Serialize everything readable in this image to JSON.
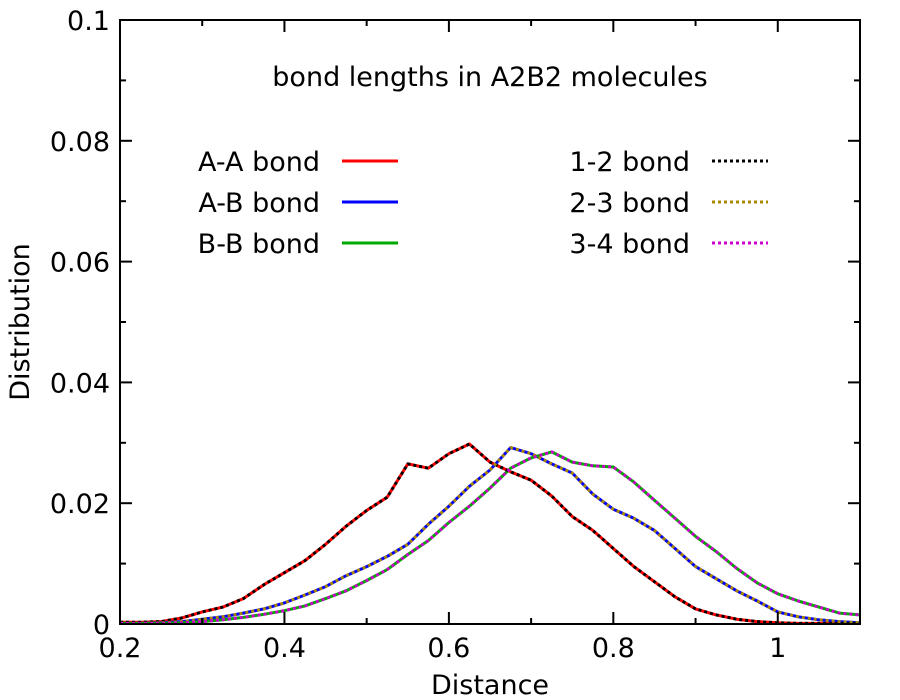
{
  "chart_data": {
    "type": "line",
    "title": "bond lengths in A2B2 molecules",
    "xlabel": "Distance",
    "ylabel": "Distribution",
    "xlim": [
      0.2,
      1.1
    ],
    "ylim": [
      0,
      0.1
    ],
    "xticks": [
      0.2,
      0.4,
      0.6,
      0.8,
      1
    ],
    "xtick_labels": [
      "0.2",
      "0.4",
      "0.6",
      "0.8",
      "1"
    ],
    "yticks": [
      0,
      0.02,
      0.04,
      0.06,
      0.08,
      0.1
    ],
    "ytick_labels": [
      "0",
      "0.02",
      "0.04",
      "0.06",
      "0.08",
      "0.1"
    ],
    "grid": false,
    "legend_placement": "top",
    "series": [
      {
        "name": "A-A bond",
        "color": "#ff0000",
        "style": "solid",
        "x": [
          0.2,
          0.225,
          0.25,
          0.275,
          0.3,
          0.325,
          0.35,
          0.375,
          0.4,
          0.425,
          0.45,
          0.475,
          0.5,
          0.525,
          0.55,
          0.575,
          0.6,
          0.625,
          0.65,
          0.675,
          0.7,
          0.725,
          0.75,
          0.775,
          0.8,
          0.825,
          0.85,
          0.875,
          0.9,
          0.925,
          0.95,
          0.975,
          1.0,
          1.025,
          1.05,
          1.075,
          1.1
        ],
        "y": [
          0.0003,
          0.0003,
          0.0004,
          0.001,
          0.002,
          0.0028,
          0.0042,
          0.0065,
          0.0085,
          0.0105,
          0.0132,
          0.0162,
          0.0188,
          0.021,
          0.0265,
          0.0258,
          0.0282,
          0.0298,
          0.0268,
          0.0252,
          0.0238,
          0.0212,
          0.0178,
          0.0155,
          0.0125,
          0.0095,
          0.007,
          0.0045,
          0.0025,
          0.0015,
          0.0008,
          0.0004,
          0.0002,
          0.0001,
          0.0001,
          0.0001,
          0.0001
        ]
      },
      {
        "name": "A-B bond",
        "color": "#0000ff",
        "style": "solid",
        "x": [
          0.2,
          0.225,
          0.25,
          0.275,
          0.3,
          0.325,
          0.35,
          0.375,
          0.4,
          0.425,
          0.45,
          0.475,
          0.5,
          0.525,
          0.55,
          0.575,
          0.6,
          0.625,
          0.65,
          0.675,
          0.7,
          0.725,
          0.75,
          0.775,
          0.8,
          0.825,
          0.85,
          0.875,
          0.9,
          0.925,
          0.95,
          0.975,
          1.0,
          1.025,
          1.05,
          1.075,
          1.1
        ],
        "y": [
          0.0001,
          0.0001,
          0.0002,
          0.0004,
          0.0008,
          0.0012,
          0.0018,
          0.0025,
          0.0035,
          0.0048,
          0.0062,
          0.008,
          0.0095,
          0.0112,
          0.0132,
          0.0165,
          0.0195,
          0.0228,
          0.0255,
          0.0292,
          0.0282,
          0.0265,
          0.025,
          0.0215,
          0.019,
          0.0175,
          0.0155,
          0.0125,
          0.0095,
          0.0075,
          0.0055,
          0.0038,
          0.002,
          0.0012,
          0.0007,
          0.0004,
          0.0002
        ]
      },
      {
        "name": "B-B bond",
        "color": "#00aa00",
        "style": "solid",
        "x": [
          0.2,
          0.225,
          0.25,
          0.275,
          0.3,
          0.325,
          0.35,
          0.375,
          0.4,
          0.425,
          0.45,
          0.475,
          0.5,
          0.525,
          0.55,
          0.575,
          0.6,
          0.625,
          0.65,
          0.675,
          0.7,
          0.725,
          0.75,
          0.775,
          0.8,
          0.825,
          0.85,
          0.875,
          0.9,
          0.925,
          0.95,
          0.975,
          1.0,
          1.025,
          1.05,
          1.075,
          1.1
        ],
        "y": [
          0.0001,
          0.0001,
          0.0001,
          0.0002,
          0.0004,
          0.0007,
          0.0011,
          0.0016,
          0.0022,
          0.003,
          0.0042,
          0.0055,
          0.0072,
          0.009,
          0.0115,
          0.0138,
          0.0168,
          0.0195,
          0.0225,
          0.0258,
          0.0275,
          0.0285,
          0.0268,
          0.0262,
          0.026,
          0.0235,
          0.0205,
          0.0175,
          0.0145,
          0.012,
          0.0092,
          0.0068,
          0.005,
          0.0038,
          0.0028,
          0.0018,
          0.0015
        ]
      },
      {
        "name": "1-2 bond",
        "color": "#000000",
        "style": "dotted",
        "x": [
          0.2,
          0.225,
          0.25,
          0.275,
          0.3,
          0.325,
          0.35,
          0.375,
          0.4,
          0.425,
          0.45,
          0.475,
          0.5,
          0.525,
          0.55,
          0.575,
          0.6,
          0.625,
          0.65,
          0.675,
          0.7,
          0.725,
          0.75,
          0.775,
          0.8,
          0.825,
          0.85,
          0.875,
          0.9,
          0.925,
          0.95,
          0.975,
          1.0,
          1.025,
          1.05,
          1.075,
          1.1
        ],
        "y": [
          0.0003,
          0.0003,
          0.0004,
          0.001,
          0.002,
          0.0028,
          0.0042,
          0.0065,
          0.0085,
          0.0105,
          0.0132,
          0.0162,
          0.0188,
          0.021,
          0.0265,
          0.0258,
          0.0282,
          0.0298,
          0.0268,
          0.0252,
          0.0238,
          0.0212,
          0.0178,
          0.0155,
          0.0125,
          0.0095,
          0.007,
          0.0045,
          0.0025,
          0.0015,
          0.0008,
          0.0004,
          0.0002,
          0.0001,
          0.0001,
          0.0001,
          0.0001
        ]
      },
      {
        "name": "2-3 bond",
        "color": "#aa8800",
        "style": "dotted",
        "x": [
          0.2,
          0.225,
          0.25,
          0.275,
          0.3,
          0.325,
          0.35,
          0.375,
          0.4,
          0.425,
          0.45,
          0.475,
          0.5,
          0.525,
          0.55,
          0.575,
          0.6,
          0.625,
          0.65,
          0.675,
          0.7,
          0.725,
          0.75,
          0.775,
          0.8,
          0.825,
          0.85,
          0.875,
          0.9,
          0.925,
          0.95,
          0.975,
          1.0,
          1.025,
          1.05,
          1.075,
          1.1
        ],
        "y": [
          0.0001,
          0.0001,
          0.0002,
          0.0004,
          0.0008,
          0.0012,
          0.0018,
          0.0025,
          0.0035,
          0.0048,
          0.0062,
          0.008,
          0.0095,
          0.0112,
          0.0132,
          0.0165,
          0.0195,
          0.0228,
          0.0255,
          0.0292,
          0.0282,
          0.0265,
          0.025,
          0.0215,
          0.019,
          0.0175,
          0.0155,
          0.0125,
          0.0095,
          0.0075,
          0.0055,
          0.0038,
          0.002,
          0.0012,
          0.0007,
          0.0004,
          0.0002
        ]
      },
      {
        "name": "3-4 bond",
        "color": "#cc00cc",
        "style": "dotted",
        "x": [
          0.2,
          0.225,
          0.25,
          0.275,
          0.3,
          0.325,
          0.35,
          0.375,
          0.4,
          0.425,
          0.45,
          0.475,
          0.5,
          0.525,
          0.55,
          0.575,
          0.6,
          0.625,
          0.65,
          0.675,
          0.7,
          0.725,
          0.75,
          0.775,
          0.8,
          0.825,
          0.85,
          0.875,
          0.9,
          0.925,
          0.95,
          0.975,
          1.0,
          1.025,
          1.05,
          1.075,
          1.1
        ],
        "y": [
          0.0001,
          0.0001,
          0.0001,
          0.0002,
          0.0004,
          0.0007,
          0.0011,
          0.0016,
          0.0022,
          0.003,
          0.0042,
          0.0055,
          0.0072,
          0.009,
          0.0115,
          0.0138,
          0.0168,
          0.0195,
          0.0225,
          0.0258,
          0.0275,
          0.0285,
          0.0268,
          0.0262,
          0.026,
          0.0235,
          0.0205,
          0.0175,
          0.0145,
          0.012,
          0.0092,
          0.0068,
          0.005,
          0.0038,
          0.0028,
          0.0018,
          0.0015
        ]
      }
    ]
  }
}
